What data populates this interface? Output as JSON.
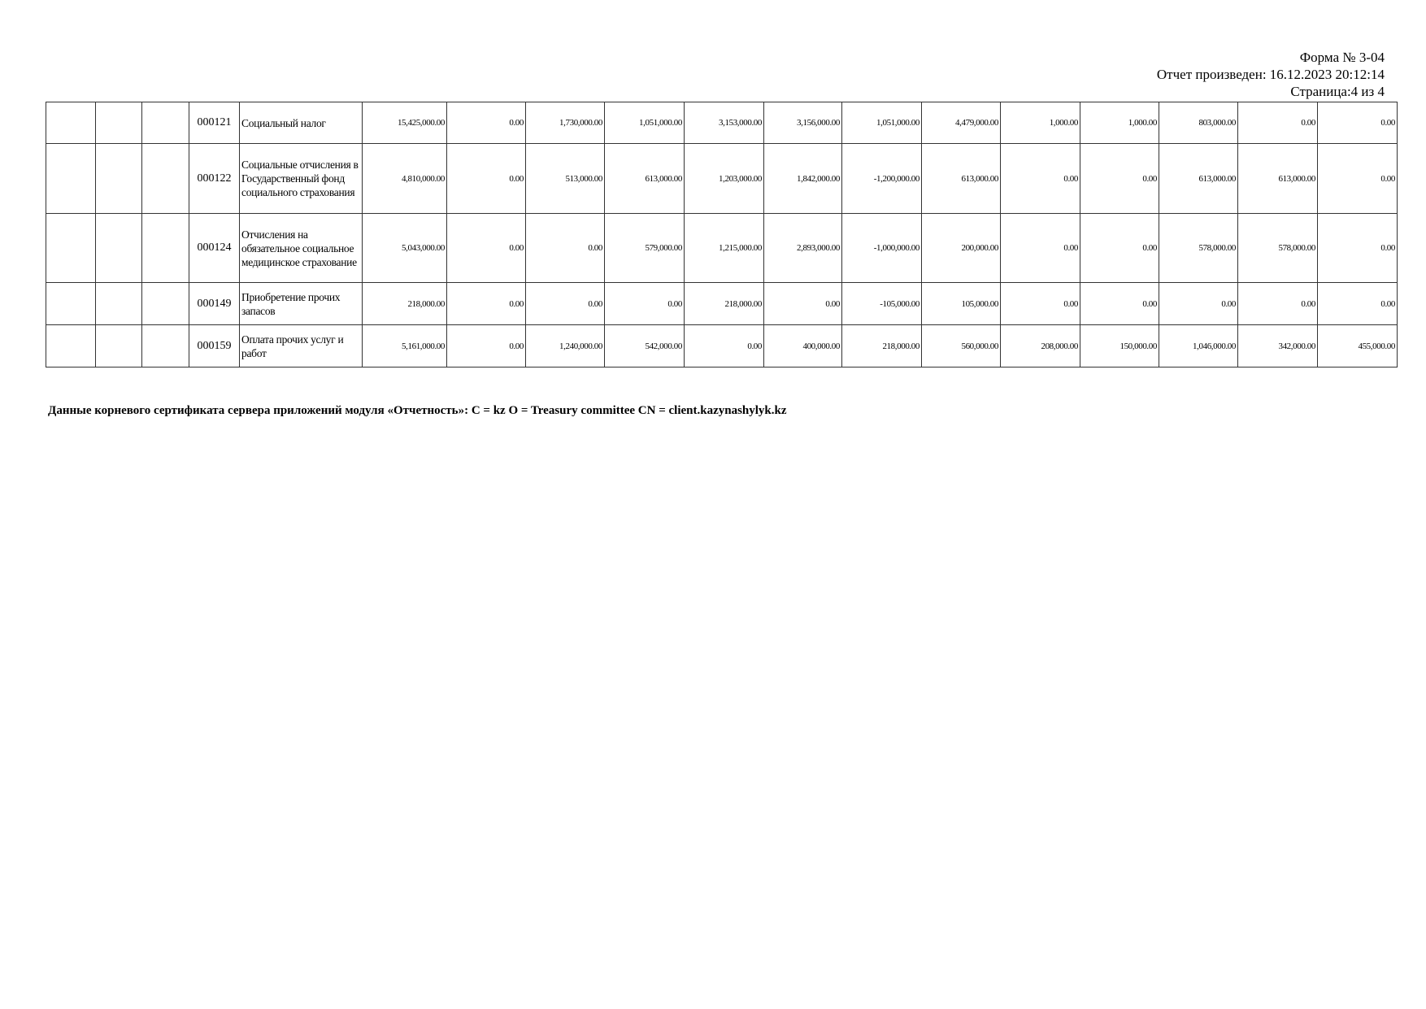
{
  "header": {
    "form": "Форма № 3-04",
    "generated": "Отчет произведен: 16.12.2023 20:12:14",
    "page": "Страница:4 из 4"
  },
  "table": {
    "rows": [
      {
        "code": "000121",
        "name": "Социальный налог",
        "values": [
          "15,425,000.00",
          "0.00",
          "1,730,000.00",
          "1,051,000.00",
          "3,153,000.00",
          "3,156,000.00",
          "1,051,000.00",
          "4,479,000.00",
          "1,000.00",
          "1,000.00",
          "803,000.00",
          "0.00",
          "0.00"
        ]
      },
      {
        "code": "000122",
        "name": "Социальные отчисления в Государственный фонд социального страхования",
        "values": [
          "4,810,000.00",
          "0.00",
          "513,000.00",
          "613,000.00",
          "1,203,000.00",
          "1,842,000.00",
          "-1,200,000.00",
          "613,000.00",
          "0.00",
          "0.00",
          "613,000.00",
          "613,000.00",
          "0.00"
        ]
      },
      {
        "code": "000124",
        "name": "Отчисления на обязательное социальное медицинское страхование",
        "values": [
          "5,043,000.00",
          "0.00",
          "0.00",
          "579,000.00",
          "1,215,000.00",
          "2,893,000.00",
          "-1,000,000.00",
          "200,000.00",
          "0.00",
          "0.00",
          "578,000.00",
          "578,000.00",
          "0.00"
        ]
      },
      {
        "code": "000149",
        "name": "Приобретение прочих запасов",
        "values": [
          "218,000.00",
          "0.00",
          "0.00",
          "0.00",
          "218,000.00",
          "0.00",
          "-105,000.00",
          "105,000.00",
          "0.00",
          "0.00",
          "0.00",
          "0.00",
          "0.00"
        ]
      },
      {
        "code": "000159",
        "name": "Оплата прочих услуг и работ",
        "values": [
          "5,161,000.00",
          "0.00",
          "1,240,000.00",
          "542,000.00",
          "0.00",
          "400,000.00",
          "218,000.00",
          "560,000.00",
          "208,000.00",
          "150,000.00",
          "1,046,000.00",
          "342,000.00",
          "455,000.00"
        ]
      }
    ]
  },
  "footer": "Данные корневого сертификата сервера приложений модуля «Отчетность»: C = kz O = Treasury committee CN = client.kazynashylyk.kz"
}
